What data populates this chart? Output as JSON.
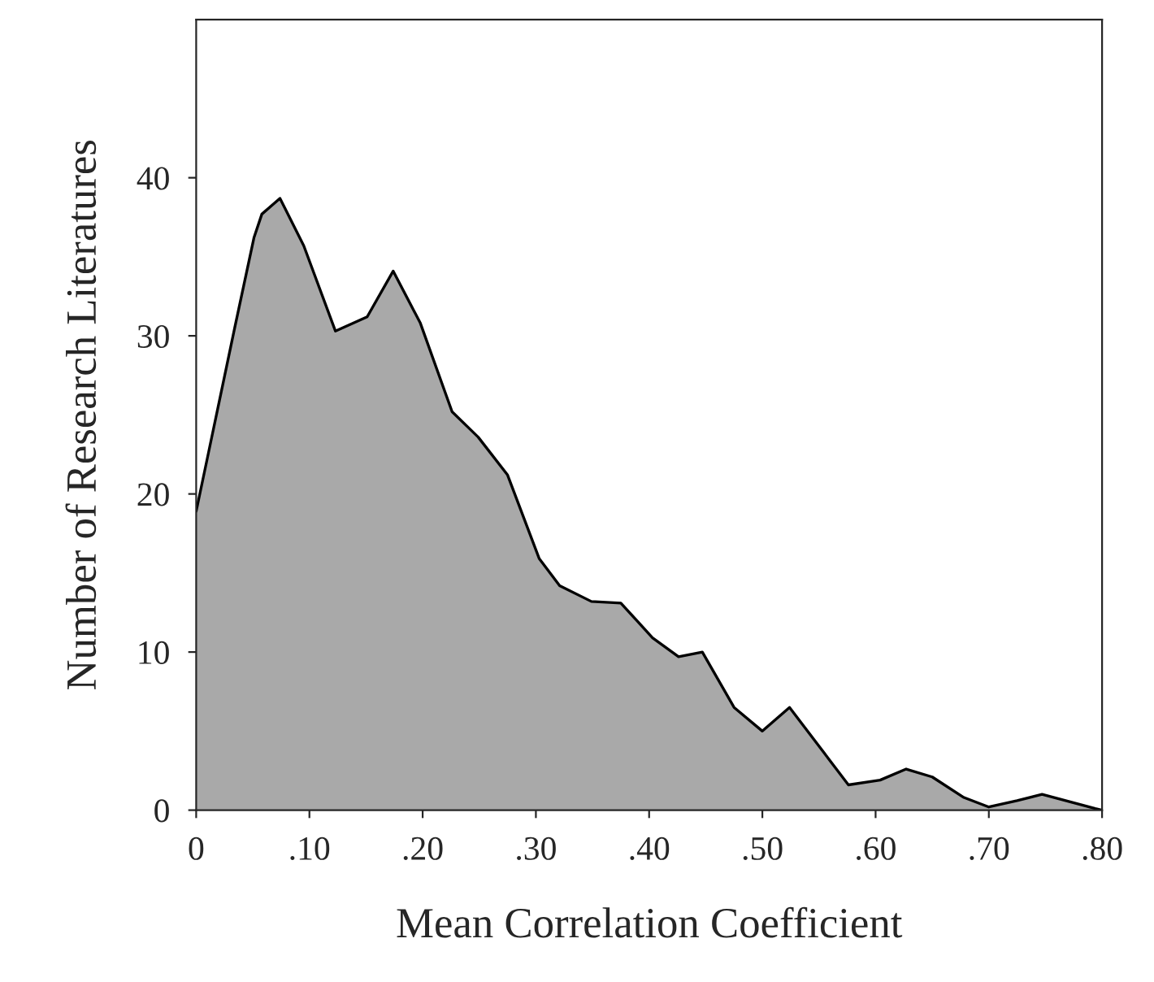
{
  "chart_data": {
    "type": "area",
    "xlabel": "Mean Correlation Coefficient",
    "ylabel": "Number of Research Literatures",
    "x": [
      0,
      0.034,
      0.051,
      0.058,
      0.074,
      0.095,
      0.123,
      0.151,
      0.174,
      0.198,
      0.226,
      0.249,
      0.275,
      0.303,
      0.321,
      0.349,
      0.375,
      0.389,
      0.403,
      0.426,
      0.447,
      0.475,
      0.5,
      0.524,
      0.576,
      0.604,
      0.627,
      0.65,
      0.678,
      0.7,
      0.725,
      0.747,
      0.794,
      0.8
    ],
    "series": [
      {
        "color": "#a9a9a9",
        "values": [
          18.9,
          30.5,
          36.2,
          37.7,
          38.7,
          35.7,
          30.3,
          31.2,
          34.1,
          30.8,
          25.2,
          23.6,
          21.2,
          15.9,
          14.2,
          13.2,
          13.1,
          12.0,
          10.9,
          9.7,
          10.0,
          6.5,
          5.0,
          6.5,
          1.6,
          1.9,
          2.6,
          2.1,
          0.8,
          0.2,
          0.6,
          1.0,
          0.1,
          0
        ]
      }
    ],
    "xlim": [
      0,
      0.8
    ],
    "xticks": [
      {
        "value": 0,
        "label": "0"
      },
      {
        "value": 0.1,
        "label": ".10"
      },
      {
        "value": 0.2,
        "label": ".20"
      },
      {
        "value": 0.3,
        "label": ".30"
      },
      {
        "value": 0.4,
        "label": ".40"
      },
      {
        "value": 0.5,
        "label": ".50"
      },
      {
        "value": 0.6,
        "label": ".60"
      },
      {
        "value": 0.7,
        "label": ".70"
      },
      {
        "value": 0.8,
        "label": ".80"
      }
    ],
    "ylim": [
      0,
      50
    ],
    "yticks": [
      0,
      10,
      20,
      30,
      40
    ]
  }
}
